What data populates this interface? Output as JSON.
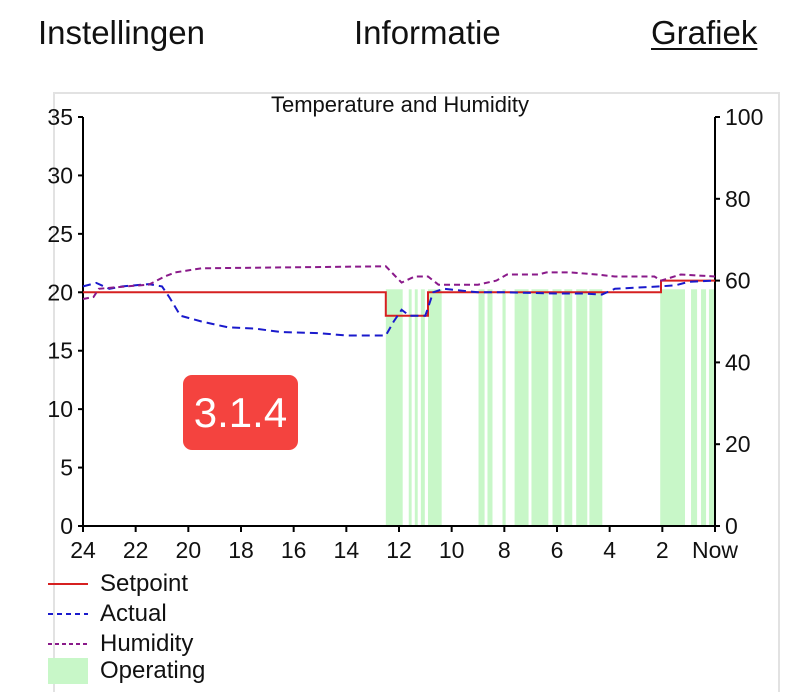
{
  "tabs": [
    {
      "label": "Instellingen",
      "active": false
    },
    {
      "label": "Informatie",
      "active": false
    },
    {
      "label": "Grafiek",
      "active": true
    }
  ],
  "badge": {
    "text": "3.1.4",
    "color": "#f4433f"
  },
  "chart_data": {
    "type": "line",
    "title": "Temperature and Humidity",
    "xlabel": "",
    "ylabel": "",
    "x_unit": "hours ago",
    "xlim": [
      24,
      0
    ],
    "x_ticks": [
      {
        "value": 24,
        "label": "24"
      },
      {
        "value": 22,
        "label": "22"
      },
      {
        "value": 20,
        "label": "20"
      },
      {
        "value": 18,
        "label": "18"
      },
      {
        "value": 16,
        "label": "16"
      },
      {
        "value": 14,
        "label": "14"
      },
      {
        "value": 12,
        "label": "12"
      },
      {
        "value": 10,
        "label": "10"
      },
      {
        "value": 8,
        "label": "8"
      },
      {
        "value": 6,
        "label": "6"
      },
      {
        "value": 4,
        "label": "4"
      },
      {
        "value": 2,
        "label": "2"
      },
      {
        "value": 0,
        "label": "Now"
      }
    ],
    "ylim_left": [
      0,
      35
    ],
    "y_ticks_left": [
      0,
      5,
      10,
      15,
      20,
      25,
      30,
      35
    ],
    "ylim_right": [
      0,
      100
    ],
    "y_ticks_right": [
      0,
      20,
      40,
      60,
      80,
      100
    ],
    "grid": false,
    "legend_position": "bottom-left",
    "series": [
      {
        "name": "Setpoint",
        "axis": "left",
        "color": "#d62020",
        "style": "solid",
        "points": [
          [
            24,
            20
          ],
          [
            12.5,
            20
          ],
          [
            12.5,
            18
          ],
          [
            10.9,
            18
          ],
          [
            10.9,
            20
          ],
          [
            2.05,
            20
          ],
          [
            2.05,
            21
          ],
          [
            0,
            21
          ]
        ]
      },
      {
        "name": "Actual",
        "axis": "left",
        "color": "#1a1acc",
        "style": "dashed",
        "points": [
          [
            24,
            20.5
          ],
          [
            23.5,
            20.8
          ],
          [
            23,
            20.3
          ],
          [
            22.5,
            20.5
          ],
          [
            21.5,
            20.7
          ],
          [
            21,
            20.5
          ],
          [
            20.7,
            19.5
          ],
          [
            20.3,
            18
          ],
          [
            19.5,
            17.5
          ],
          [
            18.5,
            17
          ],
          [
            17.5,
            16.9
          ],
          [
            16.5,
            16.6
          ],
          [
            15,
            16.5
          ],
          [
            14,
            16.3
          ],
          [
            12.5,
            16.3
          ],
          [
            12.2,
            17.5
          ],
          [
            11.9,
            18.5
          ],
          [
            11.6,
            18
          ],
          [
            11,
            18
          ],
          [
            10.7,
            20
          ],
          [
            10.3,
            20.3
          ],
          [
            9,
            20
          ],
          [
            8,
            20
          ],
          [
            6,
            19.9
          ],
          [
            5,
            19.9
          ],
          [
            4.3,
            19.8
          ],
          [
            3.8,
            20.3
          ],
          [
            2.1,
            20.5
          ],
          [
            1.5,
            20.6
          ],
          [
            1,
            20.9
          ],
          [
            0,
            21
          ]
        ]
      },
      {
        "name": "Humidity",
        "axis": "right",
        "color": "#8a1a8a",
        "style": "dashed",
        "points": [
          [
            24,
            55.5
          ],
          [
            23.6,
            56
          ],
          [
            23.4,
            58
          ],
          [
            22.5,
            58.5
          ],
          [
            21.5,
            59
          ],
          [
            20.9,
            61
          ],
          [
            20.5,
            62
          ],
          [
            19.5,
            63
          ],
          [
            12.5,
            63.5
          ],
          [
            12.2,
            61.5
          ],
          [
            11.9,
            59.5
          ],
          [
            11.4,
            61
          ],
          [
            10.9,
            61
          ],
          [
            10.5,
            59
          ],
          [
            9,
            59
          ],
          [
            8.3,
            60
          ],
          [
            7.9,
            61.5
          ],
          [
            6.7,
            61.5
          ],
          [
            6.4,
            62
          ],
          [
            5.5,
            62
          ],
          [
            4.5,
            61.5
          ],
          [
            3.8,
            61
          ],
          [
            2.3,
            61
          ],
          [
            2.05,
            60
          ],
          [
            1.3,
            61.5
          ],
          [
            0,
            61
          ]
        ]
      },
      {
        "name": "Operating",
        "type": "spans",
        "color": "#c8f7c8",
        "spans": [
          [
            12.5,
            11.86
          ],
          [
            11.63,
            11.52
          ],
          [
            11.4,
            11.29
          ],
          [
            11.17,
            11.02
          ],
          [
            10.9,
            10.38
          ],
          [
            8.98,
            8.75
          ],
          [
            8.64,
            8.45
          ],
          [
            8.07,
            7.95
          ],
          [
            7.61,
            7.08
          ],
          [
            6.97,
            6.33
          ],
          [
            6.17,
            5.83
          ],
          [
            5.72,
            5.42
          ],
          [
            5.27,
            4.85
          ],
          [
            4.77,
            4.28
          ],
          [
            2.08,
            1.14
          ],
          [
            0.91,
            0.68
          ],
          [
            0.53,
            0.34
          ],
          [
            0.23,
            0.04
          ]
        ]
      }
    ]
  }
}
